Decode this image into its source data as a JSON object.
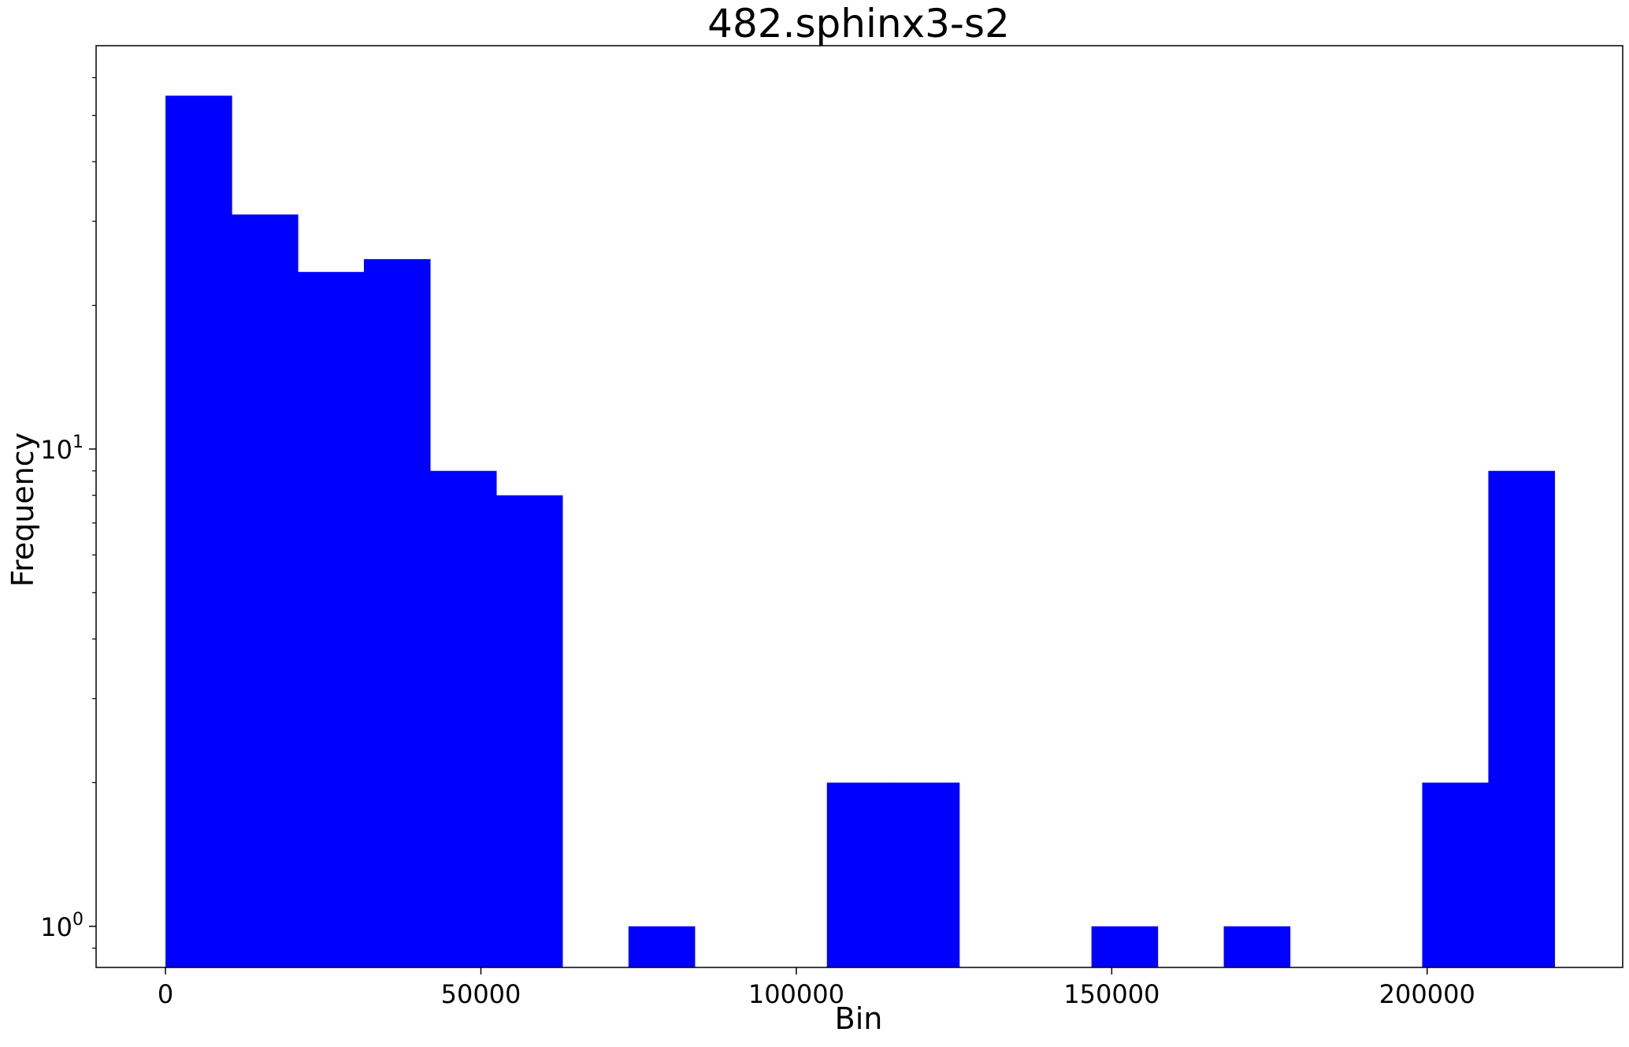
{
  "chart_data": {
    "type": "bar",
    "title": "482.sphinx3-s2",
    "xlabel": "Bin",
    "ylabel": "Frequency",
    "yscale": "log",
    "xlim": [
      -11000,
      231000
    ],
    "ylim": [
      0.82,
      70
    ],
    "x_ticks": [
      0,
      50000,
      100000,
      150000,
      200000
    ],
    "x_tick_labels": [
      "0",
      "50000",
      "100000",
      "150000",
      "200000"
    ],
    "y_ticks": [
      1,
      10
    ],
    "y_tick_labels": [
      {
        "base": "10",
        "exp": "0"
      },
      {
        "base": "10",
        "exp": "1"
      }
    ],
    "bin_edges": [
      0,
      10485,
      20970,
      31455,
      41940,
      52425,
      62910,
      73395,
      83880,
      94365,
      104850,
      115335,
      125820,
      136305,
      146790,
      157275,
      167760,
      178245,
      188730,
      199215,
      209700,
      220185
    ],
    "values": [
      55,
      31,
      23.5,
      25,
      9,
      8,
      0,
      1,
      0,
      0,
      2,
      2,
      0,
      0,
      1,
      0,
      1,
      0,
      0,
      2,
      9
    ],
    "bar_color": "#0000ff",
    "grid": false,
    "legend": "none"
  }
}
